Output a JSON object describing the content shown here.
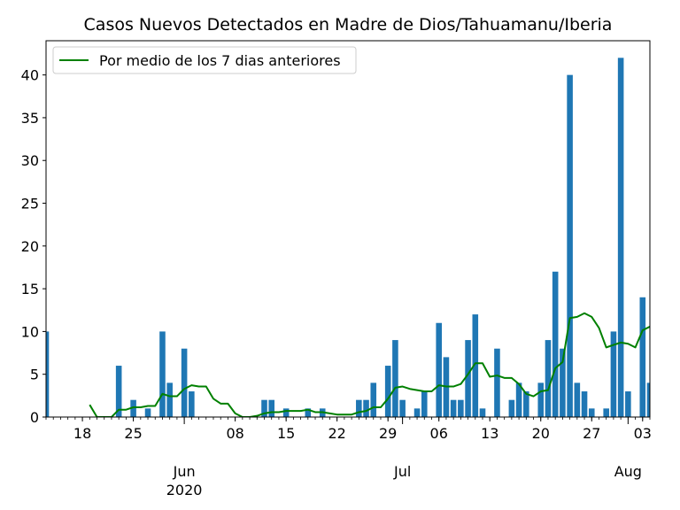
{
  "chart_data": {
    "type": "bar",
    "title": "Casos Nuevos Detectados en Madre de Dios/Tahuamanu/Iberia",
    "xlabel": "",
    "ylabel": "",
    "x_start": "2020-05-13",
    "x_end": "2020-08-04",
    "ylim": [
      0,
      44
    ],
    "yticks": [
      0,
      5,
      10,
      15,
      20,
      25,
      30,
      35,
      40
    ],
    "xticks_minor": [
      {
        "date": "2020-05-18",
        "label": "18"
      },
      {
        "date": "2020-05-25",
        "label": "25"
      },
      {
        "date": "2020-06-08",
        "label": "08"
      },
      {
        "date": "2020-06-15",
        "label": "15"
      },
      {
        "date": "2020-06-22",
        "label": "22"
      },
      {
        "date": "2020-06-29",
        "label": "29"
      },
      {
        "date": "2020-07-06",
        "label": "06"
      },
      {
        "date": "2020-07-13",
        "label": "13"
      },
      {
        "date": "2020-07-20",
        "label": "20"
      },
      {
        "date": "2020-07-27",
        "label": "27"
      },
      {
        "date": "2020-08-03",
        "label": "03"
      }
    ],
    "xticks_major": [
      {
        "date": "2020-06-01",
        "label": "Jun",
        "sublabel": "2020"
      },
      {
        "date": "2020-07-01",
        "label": "Jul",
        "sublabel": ""
      },
      {
        "date": "2020-08-01",
        "label": "Aug",
        "sublabel": ""
      }
    ],
    "grid": false,
    "legend_position": "top-left",
    "series": [
      {
        "type": "bar",
        "color": "#1f77b4",
        "dates": [
          "2020-05-13",
          "2020-05-23",
          "2020-05-25",
          "2020-05-27",
          "2020-05-29",
          "2020-05-30",
          "2020-06-01",
          "2020-06-02",
          "2020-06-12",
          "2020-06-13",
          "2020-06-15",
          "2020-06-18",
          "2020-06-20",
          "2020-06-25",
          "2020-06-26",
          "2020-06-27",
          "2020-06-29",
          "2020-06-30",
          "2020-07-01",
          "2020-07-03",
          "2020-07-04",
          "2020-07-06",
          "2020-07-07",
          "2020-07-08",
          "2020-07-09",
          "2020-07-10",
          "2020-07-11",
          "2020-07-12",
          "2020-07-14",
          "2020-07-16",
          "2020-07-17",
          "2020-07-18",
          "2020-07-20",
          "2020-07-21",
          "2020-07-22",
          "2020-07-23",
          "2020-07-24",
          "2020-07-25",
          "2020-07-26",
          "2020-07-27",
          "2020-07-29",
          "2020-07-30",
          "2020-07-31",
          "2020-08-01",
          "2020-08-03",
          "2020-08-04",
          "2020-08-05"
        ],
        "values": [
          10,
          6,
          2,
          1,
          10,
          4,
          8,
          3,
          2,
          2,
          1,
          1,
          1,
          2,
          2,
          4,
          6,
          9,
          2,
          1,
          3,
          11,
          7,
          2,
          2,
          9,
          12,
          1,
          8,
          2,
          4,
          3,
          4,
          9,
          17,
          8,
          40,
          4,
          3,
          1,
          1,
          10,
          42,
          3,
          14,
          4,
          4
        ]
      },
      {
        "type": "line",
        "name": "Por medio de los 7 dias anteriores",
        "color": "#008000",
        "dates": [
          "2020-05-19",
          "2020-05-20",
          "2020-05-21",
          "2020-05-22",
          "2020-05-23",
          "2020-05-24",
          "2020-05-25",
          "2020-05-26",
          "2020-05-27",
          "2020-05-28",
          "2020-05-29",
          "2020-05-30",
          "2020-05-31",
          "2020-06-01",
          "2020-06-02",
          "2020-06-03",
          "2020-06-04",
          "2020-06-05",
          "2020-06-06",
          "2020-06-07",
          "2020-06-08",
          "2020-06-09",
          "2020-06-10",
          "2020-06-11",
          "2020-06-12",
          "2020-06-13",
          "2020-06-14",
          "2020-06-15",
          "2020-06-16",
          "2020-06-17",
          "2020-06-18",
          "2020-06-19",
          "2020-06-20",
          "2020-06-21",
          "2020-06-22",
          "2020-06-23",
          "2020-06-24",
          "2020-06-25",
          "2020-06-26",
          "2020-06-27",
          "2020-06-28",
          "2020-06-29",
          "2020-06-30",
          "2020-07-01",
          "2020-07-02",
          "2020-07-03",
          "2020-07-04",
          "2020-07-05",
          "2020-07-06",
          "2020-07-07",
          "2020-07-08",
          "2020-07-09",
          "2020-07-10",
          "2020-07-11",
          "2020-07-12",
          "2020-07-13",
          "2020-07-14",
          "2020-07-15",
          "2020-07-16",
          "2020-07-17",
          "2020-07-18",
          "2020-07-19",
          "2020-07-20",
          "2020-07-21",
          "2020-07-22",
          "2020-07-23",
          "2020-07-24",
          "2020-07-25",
          "2020-07-26",
          "2020-07-27",
          "2020-07-28",
          "2020-07-29",
          "2020-07-30",
          "2020-07-31",
          "2020-08-01",
          "2020-08-02",
          "2020-08-03",
          "2020-08-04",
          "2020-08-05"
        ],
        "values": [
          1.43,
          0,
          0,
          0,
          0.86,
          0.86,
          1.14,
          1.14,
          1.29,
          1.29,
          2.71,
          2.43,
          2.43,
          3.29,
          3.71,
          3.57,
          3.57,
          2.14,
          1.57,
          1.57,
          0.43,
          0,
          0,
          0.14,
          0.43,
          0.57,
          0.57,
          0.71,
          0.71,
          0.71,
          0.86,
          0.57,
          0.57,
          0.43,
          0.29,
          0.29,
          0.29,
          0.57,
          0.71,
          1.14,
          1.14,
          2.14,
          3.43,
          3.57,
          3.29,
          3.14,
          3.0,
          3.0,
          3.71,
          3.57,
          3.57,
          3.86,
          5.0,
          6.29,
          6.29,
          4.71,
          4.86,
          4.57,
          4.57,
          3.86,
          2.71,
          2.43,
          3.0,
          3.14,
          5.71,
          6.43,
          11.57,
          11.71,
          12.14,
          11.71,
          10.43,
          8.14,
          8.43,
          8.71,
          8.57,
          8.14,
          10.14,
          10.57,
          11.0
        ]
      }
    ]
  }
}
